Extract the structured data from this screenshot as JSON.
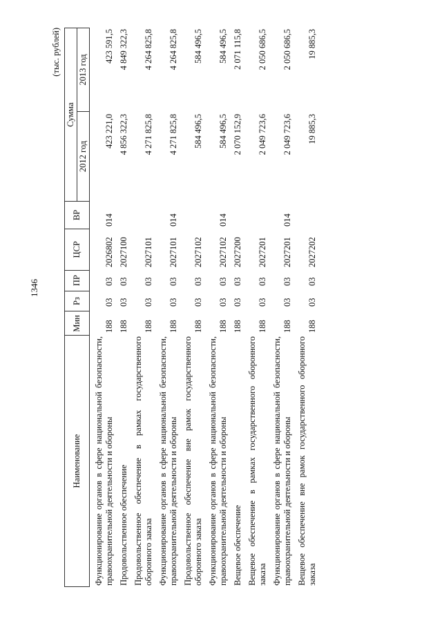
{
  "page_number": "1346",
  "units": "(тыс. рублей)",
  "headers": {
    "name": "Наименование",
    "min": "Мин",
    "rz": "Рз",
    "pr": "ПР",
    "csr": "ЦСР",
    "vr": "ВР",
    "sum": "Сумма",
    "y2012": "2012 год",
    "y2013": "2013 год"
  },
  "rows": [
    {
      "name": "Функционирование органов в сфере национальной безопасности, правоохранительной деятельности и обороны",
      "min": "188",
      "rz": "03",
      "pr": "03",
      "csr": "2026802",
      "vr": "014",
      "y2012": "423 221,0",
      "y2013": "423 591,5"
    },
    {
      "name": "Продовольственное обеспечение",
      "min": "188",
      "rz": "03",
      "pr": "03",
      "csr": "2027100",
      "vr": "",
      "y2012": "4 856 322,3",
      "y2013": "4 849 322,3"
    },
    {
      "name": "Продовольственное обеспечение в рамках государственного оборонного заказа",
      "min": "188",
      "rz": "03",
      "pr": "03",
      "csr": "2027101",
      "vr": "",
      "y2012": "4 271 825,8",
      "y2013": "4 264 825,8"
    },
    {
      "name": "Функционирование органов в сфере национальной безопасности, правоохранительной деятельности и обороны",
      "min": "188",
      "rz": "03",
      "pr": "03",
      "csr": "2027101",
      "vr": "014",
      "y2012": "4 271 825,8",
      "y2013": "4 264 825,8"
    },
    {
      "name": "Продовольственное обеспечение вне рамок государственного оборонного заказа",
      "min": "188",
      "rz": "03",
      "pr": "03",
      "csr": "2027102",
      "vr": "",
      "y2012": "584 496,5",
      "y2013": "584 496,5"
    },
    {
      "name": "Функционирование органов в сфере национальной безопасности, правоохранительной деятельности и обороны",
      "min": "188",
      "rz": "03",
      "pr": "03",
      "csr": "2027102",
      "vr": "014",
      "y2012": "584 496,5",
      "y2013": "584 496,5"
    },
    {
      "name": "Вещевое обеспечение",
      "min": "188",
      "rz": "03",
      "pr": "03",
      "csr": "2027200",
      "vr": "",
      "y2012": "2 070 152,9",
      "y2013": "2 071 115,8"
    },
    {
      "name": "Вещевое обеспечение в рамках государственного оборонного заказа",
      "min": "188",
      "rz": "03",
      "pr": "03",
      "csr": "2027201",
      "vr": "",
      "y2012": "2 049 723,6",
      "y2013": "2 050 686,5"
    },
    {
      "name": "Функционирование органов в сфере национальной безопасности, правоохранительной деятельности и обороны",
      "min": "188",
      "rz": "03",
      "pr": "03",
      "csr": "2027201",
      "vr": "014",
      "y2012": "2 049 723,6",
      "y2013": "2 050 686,5"
    },
    {
      "name": "Вещевое обеспечение вне рамок государственного оборонного заказа",
      "min": "188",
      "rz": "03",
      "pr": "03",
      "csr": "2027202",
      "vr": "",
      "y2012": "19 885,3",
      "y2013": "19 885,3"
    }
  ]
}
